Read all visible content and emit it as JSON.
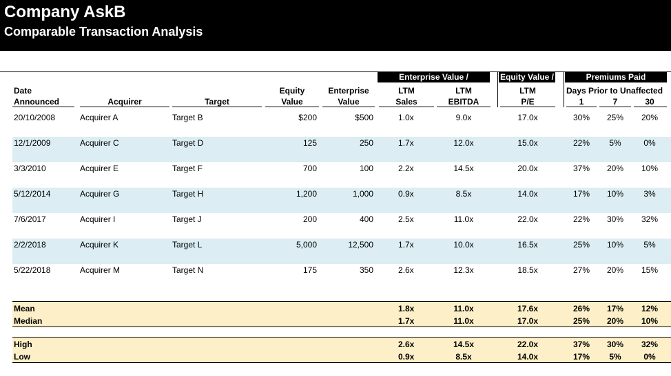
{
  "header": {
    "title": "Company AskB",
    "subtitle": "Comparable Transaction  Analysis"
  },
  "group_headers": {
    "enterprise_value": "Enterprise Value /",
    "equity_value": "Equity Value /",
    "premiums_paid": "Premiums Paid"
  },
  "columns": {
    "date_line1": "Date",
    "date_line2": "Announced",
    "acquirer": "Acquirer",
    "target": "Target",
    "equity_line1": "Equity",
    "equity_line2": "Value",
    "ev_line1": "Enterprise",
    "ev_line2": "Value",
    "ltm_sales_line1": "LTM",
    "ltm_sales_line2": "Sales",
    "ltm_ebitda_line1": "LTM",
    "ltm_ebitda_line2": "EBITDA",
    "ltm_pe_line1": "LTM",
    "ltm_pe_line2": "P/E",
    "days_prior": "Days Prior to Unaffected",
    "d1": "1",
    "d7": "7",
    "d30": "30"
  },
  "rows": [
    {
      "date": "20/10/2008",
      "acquirer": "Acquirer A",
      "target": "Target B",
      "equity": "$200",
      "ev": "$500",
      "sales": "1.0x",
      "ebitda": "9.0x",
      "pe": "17.0x",
      "p1": "30%",
      "p7": "25%",
      "p30": "20%"
    },
    {
      "date": "12/1/2009",
      "acquirer": "Acquirer C",
      "target": "Target D",
      "equity": "125",
      "ev": "250",
      "sales": "1.7x",
      "ebitda": "12.0x",
      "pe": "15.0x",
      "p1": "22%",
      "p7": "5%",
      "p30": "0%"
    },
    {
      "date": "3/3/2010",
      "acquirer": "Acquirer E",
      "target": "Target F",
      "equity": "700",
      "ev": "100",
      "sales": "2.2x",
      "ebitda": "14.5x",
      "pe": "20.0x",
      "p1": "37%",
      "p7": "20%",
      "p30": "10%"
    },
    {
      "date": "5/12/2014",
      "acquirer": "Acquirer G",
      "target": "Target H",
      "equity": "1,200",
      "ev": "1,000",
      "sales": "0.9x",
      "ebitda": "8.5x",
      "pe": "14.0x",
      "p1": "17%",
      "p7": "10%",
      "p30": "3%"
    },
    {
      "date": "7/6/2017",
      "acquirer": "Acquirer I",
      "target": "Target J",
      "equity": "200",
      "ev": "400",
      "sales": "2.5x",
      "ebitda": "11.0x",
      "pe": "22.0x",
      "p1": "22%",
      "p7": "30%",
      "p30": "32%"
    },
    {
      "date": "2/2/2018",
      "acquirer": "Acquirer K",
      "target": "Target L",
      "equity": "5,000",
      "ev": "12,500",
      "sales": "1.7x",
      "ebitda": "10.0x",
      "pe": "16.5x",
      "p1": "25%",
      "p7": "10%",
      "p30": "5%"
    },
    {
      "date": "5/22/2018",
      "acquirer": "Acquirer M",
      "target": "Target N",
      "equity": "175",
      "ev": "350",
      "sales": "2.6x",
      "ebitda": "12.3x",
      "pe": "18.5x",
      "p1": "27%",
      "p7": "20%",
      "p30": "15%"
    }
  ],
  "summary": [
    {
      "label": "Mean",
      "sales": "1.8x",
      "ebitda": "11.0x",
      "pe": "17.6x",
      "p1": "26%",
      "p7": "17%",
      "p30": "12%"
    },
    {
      "label": "Median",
      "sales": "1.7x",
      "ebitda": "11.0x",
      "pe": "17.0x",
      "p1": "25%",
      "p7": "20%",
      "p30": "10%"
    },
    {
      "label": "High",
      "sales": "2.6x",
      "ebitda": "14.5x",
      "pe": "22.0x",
      "p1": "37%",
      "p7": "30%",
      "p30": "32%"
    },
    {
      "label": "Low",
      "sales": "0.9x",
      "ebitda": "8.5x",
      "pe": "14.0x",
      "p1": "17%",
      "p7": "5%",
      "p30": "0%"
    }
  ],
  "colors": {
    "header_bg": "#000000",
    "band": "#dcedf3",
    "summary_bg": "#fdf0c8"
  }
}
